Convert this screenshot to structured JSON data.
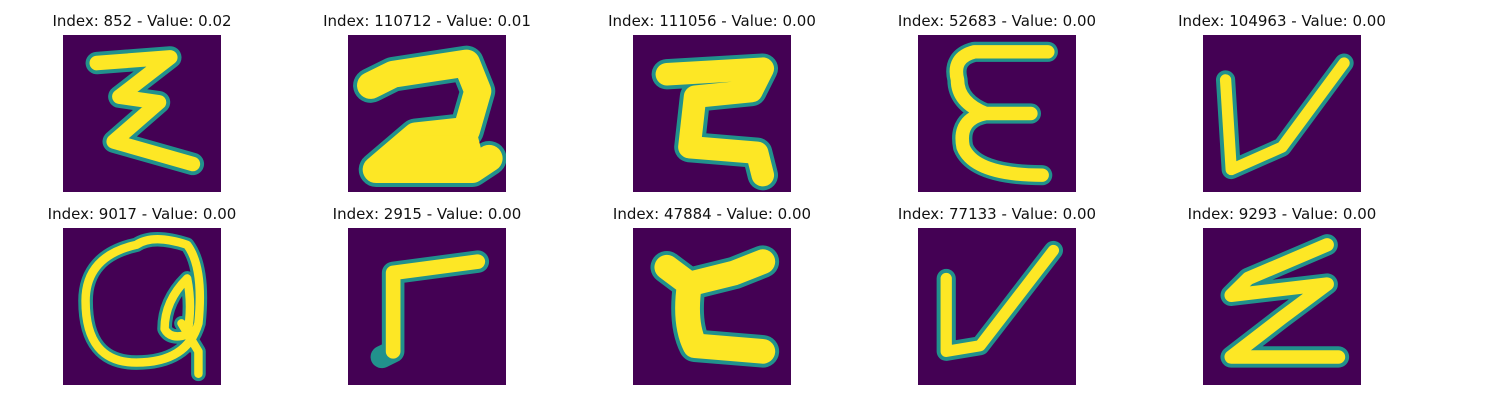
{
  "colors": {
    "background": "#440154",
    "edge": "#21918c",
    "stroke": "#fde725"
  },
  "tiles": [
    {
      "title": "Index: 852 - Value: 0.02",
      "glyph": "Z"
    },
    {
      "title": "Index: 110712 - Value: 0.01",
      "glyph": "2"
    },
    {
      "title": "Index: 111056 - Value: 0.00",
      "glyph": "Z"
    },
    {
      "title": "Index: 52683 - Value: 0.00",
      "glyph": "E"
    },
    {
      "title": "Index: 104963 - Value: 0.00",
      "glyph": "V"
    },
    {
      "title": "Index: 9017 - Value: 0.00",
      "glyph": "Q"
    },
    {
      "title": "Index: 2915 - Value: 0.00",
      "glyph": "r"
    },
    {
      "title": "Index: 47884 - Value: 0.00",
      "glyph": "t"
    },
    {
      "title": "Index: 77133 - Value: 0.00",
      "glyph": "V"
    },
    {
      "title": "Index: 9293 - Value: 0.00",
      "glyph": "Z"
    }
  ]
}
